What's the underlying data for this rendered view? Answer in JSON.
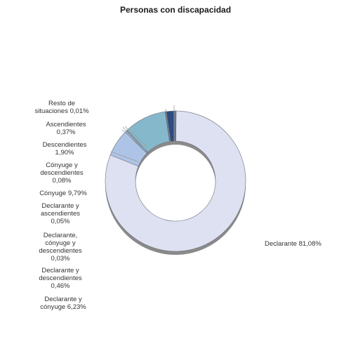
{
  "chart_data": {
    "type": "pie",
    "variant": "donut",
    "title": "Personas con discapacidad",
    "legend": "none",
    "slices": [
      {
        "name": "Declarante",
        "value": 81.08,
        "label_lines": [
          "Declarante 81,08%"
        ],
        "color": "#dde1f1"
      },
      {
        "name": "Declarante y cónyuge",
        "value": 6.23,
        "label_lines": [
          "Declarante y",
          "cónyuge 6,23%"
        ],
        "color": "#aec4e6"
      },
      {
        "name": "Declarante y descendientes",
        "value": 0.46,
        "label_lines": [
          "Declarante y",
          "descendientes",
          "0,46%"
        ],
        "color": "#8fb0d8"
      },
      {
        "name": "Declarante, cónyuge y descendientes",
        "value": 0.03,
        "label_lines": [
          "Declarante,",
          "cónyuge y",
          "descendientes",
          "0,03%"
        ],
        "color": "#7aa3c9"
      },
      {
        "name": "Declarante y ascendientes",
        "value": 0.05,
        "label_lines": [
          "Declarante y",
          "ascendientes",
          "0,05%"
        ],
        "color": "#6f9ac0"
      },
      {
        "name": "Cónyuge",
        "value": 9.79,
        "label_lines": [
          "Cónyuge 9,79%"
        ],
        "color": "#86b8cc"
      },
      {
        "name": "Cónyuge y descendientes",
        "value": 0.08,
        "label_lines": [
          "Cónyuge y",
          "descendientes",
          "0,08%"
        ],
        "color": "#5f86b0"
      },
      {
        "name": "Descendientes",
        "value": 1.9,
        "label_lines": [
          "Descendientes",
          "1,90%"
        ],
        "color": "#2e4a7e"
      },
      {
        "name": "Ascendientes",
        "value": 0.37,
        "label_lines": [
          "Ascendientes",
          "0,37%"
        ],
        "color": "#5a6d96"
      },
      {
        "name": "Resto de situaciones",
        "value": 0.01,
        "label_lines": [
          "Resto de",
          "situaciones 0,01%"
        ],
        "color": "#7d8eb3"
      }
    ]
  }
}
